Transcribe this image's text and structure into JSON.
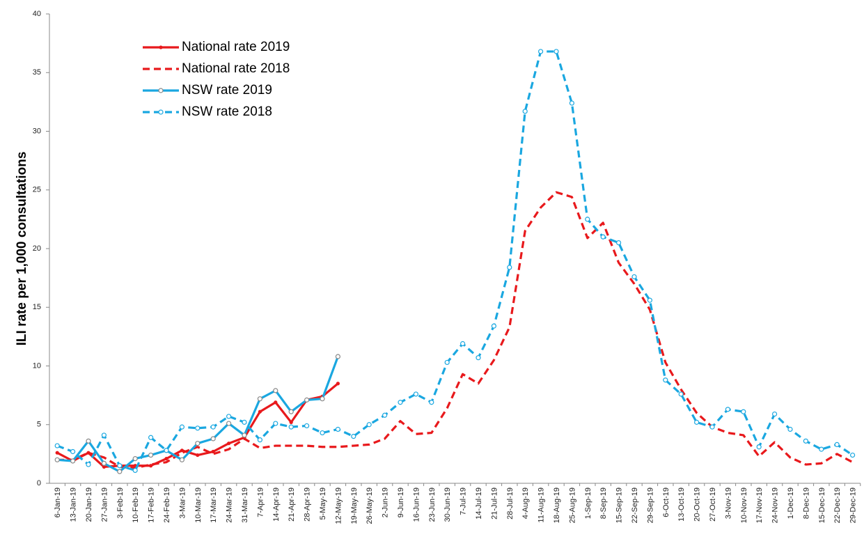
{
  "chart_data": {
    "type": "line",
    "y_label": "ILI rate per 1,000 consultations",
    "categories": [
      "6-Jan-19",
      "13-Jan-19",
      "20-Jan-19",
      "27-Jan-19",
      "3-Feb-19",
      "10-Feb-19",
      "17-Feb-19",
      "24-Feb-19",
      "3-Mar-19",
      "10-Mar-19",
      "17-Mar-19",
      "24-Mar-19",
      "31-Mar-19",
      "7-Apr-19",
      "14-Apr-19",
      "21-Apr-19",
      "28-Apr-19",
      "5-May-19",
      "12-May-19",
      "19-May-19",
      "26-May-19",
      "2-Jun-19",
      "9-Jun-19",
      "16-Jun-19",
      "23-Jun-19",
      "30-Jun-19",
      "7-Jul-19",
      "14-Jul-19",
      "21-Jul-19",
      "28-Jul-19",
      "4-Aug-19",
      "11-Aug-19",
      "18-Aug-19",
      "25-Aug-19",
      "1-Sep-19",
      "8-Sep-19",
      "15-Sep-19",
      "22-Sep-19",
      "29-Sep-19",
      "6-Oct-19",
      "13-Oct-19",
      "20-Oct-19",
      "27-Oct-19",
      "3-Nov-19",
      "10-Nov-19",
      "17-Nov-19",
      "24-Nov-19",
      "1-Dec-19",
      "8-Dec-19",
      "15-Dec-19",
      "22-Dec-19",
      "29-Dec-19"
    ],
    "series": [
      {
        "name": "National rate 2019",
        "color": "#e8191c",
        "dashed": false,
        "marker": "dot",
        "values": [
          2.6,
          1.9,
          2.6,
          1.4,
          1.5,
          1.5,
          1.5,
          2.1,
          2.8,
          2.4,
          2.7,
          3.4,
          3.9,
          6.1,
          6.9,
          5.2,
          7.1,
          7.4,
          8.5,
          null,
          null,
          null,
          null,
          null,
          null,
          null,
          null,
          null,
          null,
          null,
          null,
          null,
          null,
          null,
          null,
          null,
          null,
          null,
          null,
          null,
          null,
          null,
          null,
          null,
          null,
          null,
          null,
          null,
          null,
          null,
          null,
          null
        ]
      },
      {
        "name": "National rate 2018",
        "color": "#e8191c",
        "dashed": true,
        "marker": "none",
        "values": [
          2.0,
          2.0,
          2.6,
          2.2,
          1.4,
          1.3,
          1.6,
          1.8,
          2.6,
          3.1,
          2.5,
          2.9,
          3.8,
          3.0,
          3.2,
          3.2,
          3.2,
          3.1,
          3.1,
          3.2,
          3.3,
          3.8,
          5.3,
          4.2,
          4.3,
          6.4,
          9.3,
          8.5,
          10.5,
          13.3,
          21.5,
          23.5,
          24.8,
          24.4,
          20.9,
          22.2,
          18.8,
          17.0,
          14.8,
          10.3,
          8.0,
          6.0,
          4.8,
          4.3,
          4.1,
          2.3,
          3.5,
          2.2,
          1.6,
          1.7,
          2.5,
          1.8
        ]
      },
      {
        "name": "NSW rate 2019",
        "color": "#1aa7e0",
        "dashed": false,
        "marker": "circle",
        "values": [
          2.0,
          1.9,
          3.6,
          1.7,
          1.0,
          2.1,
          2.4,
          2.8,
          2.0,
          3.4,
          3.8,
          5.1,
          4.1,
          7.2,
          7.9,
          6.1,
          7.1,
          7.2,
          10.8,
          null,
          null,
          null,
          null,
          null,
          null,
          null,
          null,
          null,
          null,
          null,
          null,
          null,
          null,
          null,
          null,
          null,
          null,
          null,
          null,
          null,
          null,
          null,
          null,
          null,
          null,
          null,
          null,
          null,
          null,
          null,
          null,
          null
        ]
      },
      {
        "name": "NSW rate 2018",
        "color": "#1aa7e0",
        "dashed": true,
        "marker": "circle",
        "values": [
          3.2,
          2.7,
          1.6,
          4.1,
          1.5,
          1.1,
          3.9,
          2.8,
          4.8,
          4.7,
          4.8,
          5.7,
          5.2,
          3.7,
          5.1,
          4.8,
          4.9,
          4.3,
          4.6,
          4.0,
          5.0,
          5.8,
          6.9,
          7.6,
          6.9,
          10.3,
          11.9,
          10.7,
          13.4,
          18.4,
          31.7,
          36.8,
          36.8,
          32.4,
          22.5,
          21.0,
          20.5,
          17.6,
          15.6,
          8.8,
          7.6,
          5.2,
          4.8,
          6.3,
          6.1,
          3.1,
          5.9,
          4.6,
          3.6,
          2.9,
          3.3,
          2.4
        ]
      }
    ],
    "ylim": [
      0,
      40
    ],
    "yticks": [
      0,
      5,
      10,
      15,
      20,
      25,
      30,
      35,
      40
    ],
    "grid": false,
    "legend": "upper left"
  }
}
